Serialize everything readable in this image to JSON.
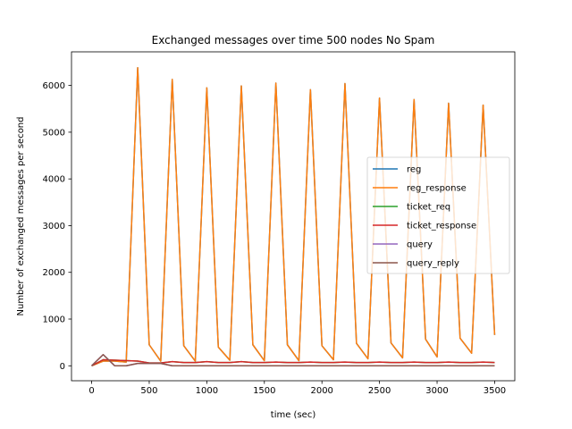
{
  "chart_data": {
    "type": "line",
    "title": "Exchanged messages over time 500 nodes No Spam",
    "xlabel": "time (sec)",
    "ylabel": "Number of exchanged messages per second",
    "xlim": [
      -175,
      3675
    ],
    "ylim": [
      -320,
      6720
    ],
    "xticks": [
      0,
      500,
      1000,
      1500,
      2000,
      2500,
      3000,
      3500
    ],
    "yticks": [
      0,
      1000,
      2000,
      3000,
      4000,
      5000,
      6000
    ],
    "grid": false,
    "legend": "center-right",
    "x": [
      0,
      100,
      200,
      300,
      400,
      500,
      600,
      700,
      800,
      900,
      1000,
      1100,
      1200,
      1300,
      1400,
      1500,
      1600,
      1700,
      1800,
      1900,
      2000,
      2100,
      2200,
      2300,
      2400,
      2500,
      2600,
      2700,
      2800,
      2900,
      3000,
      3100,
      3200,
      3300,
      3400,
      3500
    ],
    "series": [
      {
        "name": "reg",
        "color": "#1f77b4",
        "values": [
          0,
          100,
          100,
          80,
          6380,
          450,
          100,
          6130,
          430,
          100,
          5950,
          400,
          120,
          5990,
          450,
          110,
          6050,
          450,
          110,
          5910,
          430,
          130,
          6040,
          480,
          150,
          5730,
          490,
          170,
          5700,
          570,
          190,
          5620,
          590,
          270,
          5580,
          660
        ]
      },
      {
        "name": "reg_response",
        "color": "#ff7f0e",
        "values": [
          0,
          100,
          100,
          80,
          6380,
          450,
          100,
          6130,
          430,
          100,
          5950,
          400,
          120,
          5990,
          450,
          110,
          6050,
          450,
          110,
          5910,
          430,
          130,
          6040,
          480,
          150,
          5730,
          490,
          170,
          5700,
          570,
          190,
          5620,
          590,
          270,
          5580,
          660
        ]
      },
      {
        "name": "ticket_req",
        "color": "#2ca02c",
        "values": [
          0,
          130,
          120,
          110,
          100,
          60,
          60,
          90,
          70,
          70,
          90,
          70,
          70,
          90,
          70,
          70,
          80,
          70,
          70,
          80,
          70,
          70,
          80,
          70,
          70,
          80,
          70,
          70,
          80,
          70,
          70,
          80,
          70,
          70,
          80,
          70
        ]
      },
      {
        "name": "ticket_response",
        "color": "#d62728",
        "values": [
          0,
          130,
          120,
          110,
          100,
          60,
          60,
          90,
          70,
          70,
          90,
          70,
          70,
          90,
          70,
          70,
          80,
          70,
          70,
          80,
          70,
          70,
          80,
          70,
          70,
          80,
          70,
          70,
          80,
          70,
          70,
          80,
          70,
          70,
          80,
          70
        ]
      },
      {
        "name": "query",
        "color": "#9467bd",
        "values": [
          0,
          240,
          0,
          0,
          50,
          50,
          50,
          0,
          0,
          0,
          0,
          0,
          0,
          0,
          0,
          0,
          0,
          0,
          0,
          0,
          0,
          0,
          0,
          0,
          0,
          0,
          0,
          0,
          0,
          0,
          0,
          0,
          0,
          0,
          0,
          0
        ]
      },
      {
        "name": "query_reply",
        "color": "#8c564b",
        "values": [
          0,
          240,
          0,
          0,
          50,
          50,
          50,
          0,
          0,
          0,
          0,
          0,
          0,
          0,
          0,
          0,
          0,
          0,
          0,
          0,
          0,
          0,
          0,
          0,
          0,
          0,
          0,
          0,
          0,
          0,
          0,
          0,
          0,
          0,
          0,
          0
        ]
      }
    ]
  }
}
